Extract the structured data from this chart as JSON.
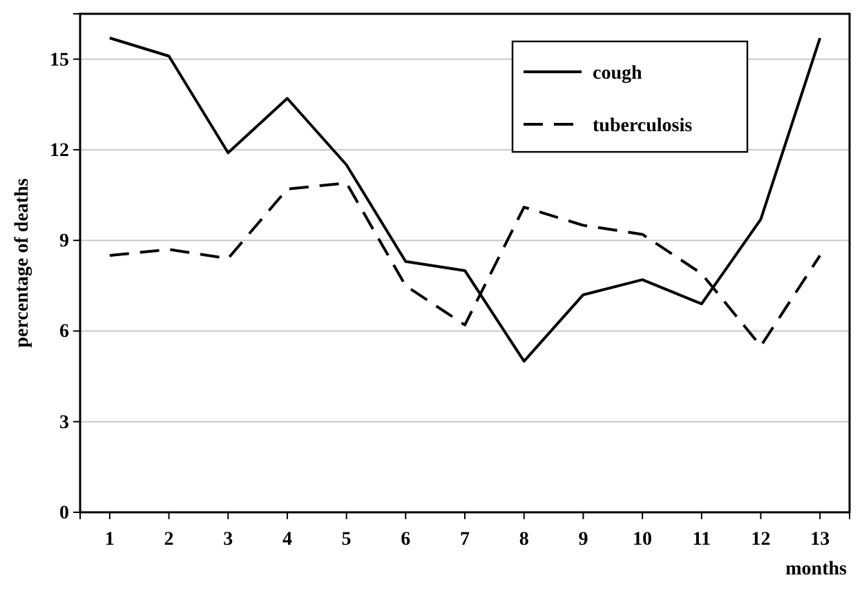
{
  "chart_data": {
    "type": "line",
    "xlabel": "months",
    "ylabel": "percentage of deaths",
    "categories": [
      "1",
      "2",
      "3",
      "4",
      "5",
      "6",
      "7",
      "8",
      "9",
      "10",
      "11",
      "12",
      "13"
    ],
    "series": [
      {
        "name": "cough",
        "color": "#000000",
        "line_style": "solid",
        "values": [
          15.7,
          15.1,
          11.9,
          13.7,
          11.5,
          8.3,
          8.0,
          5.0,
          7.2,
          7.7,
          6.9,
          9.7,
          15.7
        ]
      },
      {
        "name": "tuberculosis",
        "color": "#000000",
        "line_style": "dashed",
        "values": [
          8.5,
          8.7,
          8.4,
          10.7,
          10.9,
          7.5,
          6.2,
          10.1,
          9.5,
          9.2,
          7.9,
          5.5,
          8.5
        ]
      }
    ],
    "ylim": [
      0,
      16.5
    ],
    "yticks": [
      0,
      3,
      6,
      9,
      12,
      15
    ],
    "grid": "y",
    "legend": "top right",
    "marker": "none"
  }
}
